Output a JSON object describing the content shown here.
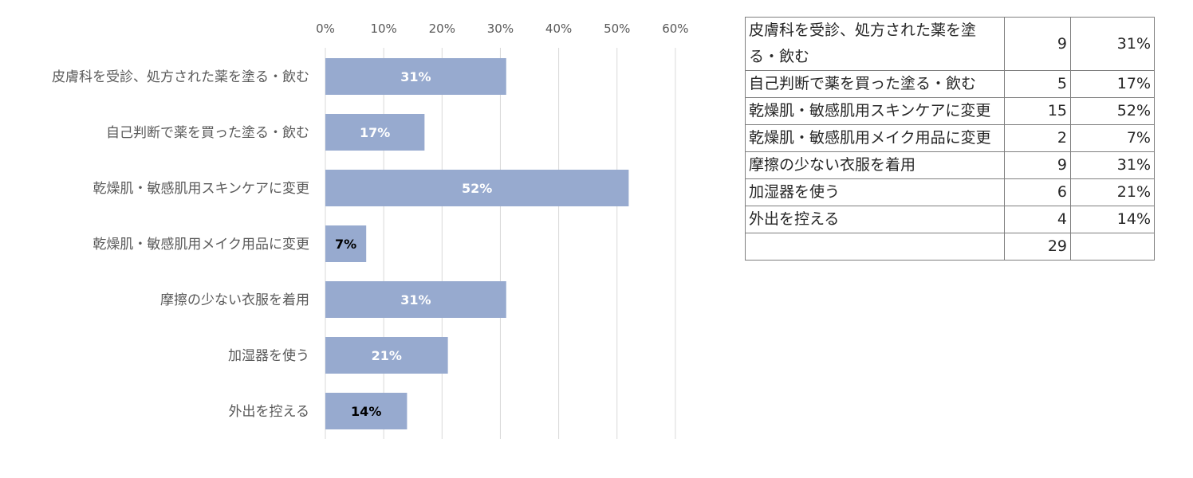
{
  "chart_data": {
    "type": "bar",
    "orientation": "horizontal",
    "categories": [
      "皮膚科を受診、処方された薬を塗る・飲む",
      "自己判断で薬を買った塗る・飲む",
      "乾燥肌・敏感肌用スキンケアに変更",
      "乾燥肌・敏感肌用メイク用品に変更",
      "摩擦の少ない衣服を着用",
      "加湿器を使う",
      "外出を控える"
    ],
    "values": [
      31,
      17,
      52,
      7,
      31,
      21,
      14
    ],
    "data_labels": [
      "31%",
      "17%",
      "52%",
      "7%",
      "31%",
      "21%",
      "14%"
    ],
    "xlim": [
      0,
      60
    ],
    "x_ticks": [
      "0%",
      "10%",
      "20%",
      "30%",
      "40%",
      "50%",
      "60%"
    ],
    "x_axis_position": "top",
    "grid": true,
    "bar_color": "#97aacf",
    "grid_color": "#d9d9d9",
    "label_color_inside": "#ffffff",
    "label_color_outside": "#000000"
  },
  "table": {
    "rows": [
      {
        "label": "皮膚科を受診、処方された薬を塗る・飲む",
        "count": "9",
        "percent": "31%"
      },
      {
        "label": "自己判断で薬を買った塗る・飲む",
        "count": "5",
        "percent": "17%"
      },
      {
        "label": "乾燥肌・敏感肌用スキンケアに変更",
        "count": "15",
        "percent": "52%"
      },
      {
        "label": "乾燥肌・敏感肌用メイク用品に変更",
        "count": "2",
        "percent": "7%"
      },
      {
        "label": "摩擦の少ない衣服を着用",
        "count": "9",
        "percent": "31%"
      },
      {
        "label": "加湿器を使う",
        "count": "6",
        "percent": "21%"
      },
      {
        "label": "外出を控える",
        "count": "4",
        "percent": "14%"
      }
    ],
    "total": {
      "label": "",
      "count": "29",
      "percent": ""
    }
  }
}
